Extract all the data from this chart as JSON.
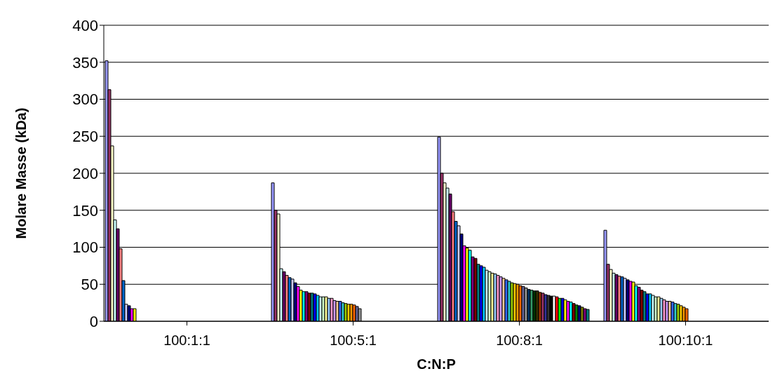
{
  "chart_data": {
    "type": "bar",
    "xlabel": "C:N:P",
    "ylabel": "Molare Masse (kDa)",
    "categories": [
      "100:1:1",
      "100:5:1",
      "100:8:1",
      "100:10:1"
    ],
    "ylim": [
      0,
      400
    ],
    "yticks": [
      0,
      50,
      100,
      150,
      200,
      250,
      300,
      350,
      400
    ],
    "grid": "y",
    "legend": false,
    "series": [
      {
        "color": "#9999ff",
        "values": [
          352,
          187,
          249,
          123
        ]
      },
      {
        "color": "#993366",
        "values": [
          313,
          150,
          200,
          77
        ]
      },
      {
        "color": "#ffffcc",
        "values": [
          237,
          145,
          187,
          70
        ]
      },
      {
        "color": "#ccffff",
        "values": [
          137,
          71,
          180,
          65
        ]
      },
      {
        "color": "#660066",
        "values": [
          125,
          67,
          172,
          63
        ]
      },
      {
        "color": "#ff8080",
        "values": [
          98,
          62,
          148,
          61
        ]
      },
      {
        "color": "#0066cc",
        "values": [
          55,
          59,
          135,
          60
        ]
      },
      {
        "color": "#ccccff",
        "values": [
          23,
          57,
          129,
          58
        ]
      },
      {
        "color": "#000080",
        "values": [
          21,
          52,
          118,
          56
        ]
      },
      {
        "color": "#ff00ff",
        "values": [
          17,
          47,
          102,
          54
        ]
      },
      {
        "color": "#ffff00",
        "values": [
          17,
          42,
          99,
          53
        ]
      },
      {
        "color": "#00ffff",
        "values": [
          null,
          40,
          96,
          48
        ]
      },
      {
        "color": "#800080",
        "values": [
          null,
          40,
          87,
          46
        ]
      },
      {
        "color": "#800000",
        "values": [
          null,
          38,
          85,
          42
        ]
      },
      {
        "color": "#008080",
        "values": [
          null,
          38,
          77,
          40
        ]
      },
      {
        "color": "#0000ff",
        "values": [
          null,
          37,
          75,
          37
        ]
      },
      {
        "color": "#00ccff",
        "values": [
          null,
          35,
          73,
          37
        ]
      },
      {
        "color": "#ccffff",
        "values": [
          null,
          33,
          69,
          35
        ]
      },
      {
        "color": "#ccffcc",
        "values": [
          null,
          33,
          67,
          33
        ]
      },
      {
        "color": "#ffff99",
        "values": [
          null,
          33,
          65,
          33
        ]
      },
      {
        "color": "#99ccff",
        "values": [
          null,
          31,
          64,
          31
        ]
      },
      {
        "color": "#ff99cc",
        "values": [
          null,
          31,
          62,
          29
        ]
      },
      {
        "color": "#cc99ff",
        "values": [
          null,
          28,
          60,
          27
        ]
      },
      {
        "color": "#ffcc99",
        "values": [
          null,
          27,
          58,
          27
        ]
      },
      {
        "color": "#3366ff",
        "values": [
          null,
          27,
          56,
          26
        ]
      },
      {
        "color": "#33cccc",
        "values": [
          null,
          25,
          54,
          24
        ]
      },
      {
        "color": "#99cc00",
        "values": [
          null,
          24,
          52,
          23
        ]
      },
      {
        "color": "#ffcc00",
        "values": [
          null,
          23,
          51,
          21
        ]
      },
      {
        "color": "#ff9900",
        "values": [
          null,
          23,
          50,
          19
        ]
      },
      {
        "color": "#ff6600",
        "values": [
          null,
          22,
          48,
          17
        ]
      },
      {
        "color": "#666699",
        "values": [
          null,
          20,
          47,
          null
        ]
      },
      {
        "color": "#969696",
        "values": [
          null,
          17,
          45,
          null
        ]
      },
      {
        "color": "#003366",
        "values": [
          null,
          null,
          43,
          null
        ]
      },
      {
        "color": "#339966",
        "values": [
          null,
          null,
          42,
          null
        ]
      },
      {
        "color": "#003300",
        "values": [
          null,
          null,
          41,
          null
        ]
      },
      {
        "color": "#333300",
        "values": [
          null,
          null,
          41,
          null
        ]
      },
      {
        "color": "#993300",
        "values": [
          null,
          null,
          39,
          null
        ]
      },
      {
        "color": "#993366",
        "values": [
          null,
          null,
          38,
          null
        ]
      },
      {
        "color": "#333399",
        "values": [
          null,
          null,
          36,
          null
        ]
      },
      {
        "color": "#333333",
        "values": [
          null,
          null,
          35,
          null
        ]
      },
      {
        "color": "#000000",
        "values": [
          null,
          null,
          34,
          null
        ]
      },
      {
        "color": "#ffffff",
        "values": [
          null,
          null,
          34,
          null
        ]
      },
      {
        "color": "#ff0000",
        "values": [
          null,
          null,
          33,
          null
        ]
      },
      {
        "color": "#00ff00",
        "values": [
          null,
          null,
          31,
          null
        ]
      },
      {
        "color": "#0000ff",
        "values": [
          null,
          null,
          31,
          null
        ]
      },
      {
        "color": "#ffff00",
        "values": [
          null,
          null,
          29,
          null
        ]
      },
      {
        "color": "#ff00ff",
        "values": [
          null,
          null,
          27,
          null
        ]
      },
      {
        "color": "#00ffff",
        "values": [
          null,
          null,
          26,
          null
        ]
      },
      {
        "color": "#800000",
        "values": [
          null,
          null,
          24,
          null
        ]
      },
      {
        "color": "#008000",
        "values": [
          null,
          null,
          22,
          null
        ]
      },
      {
        "color": "#000080",
        "values": [
          null,
          null,
          21,
          null
        ]
      },
      {
        "color": "#808000",
        "values": [
          null,
          null,
          19,
          null
        ]
      },
      {
        "color": "#800080",
        "values": [
          null,
          null,
          17,
          null
        ]
      },
      {
        "color": "#008080",
        "values": [
          null,
          null,
          16,
          null
        ]
      }
    ]
  }
}
